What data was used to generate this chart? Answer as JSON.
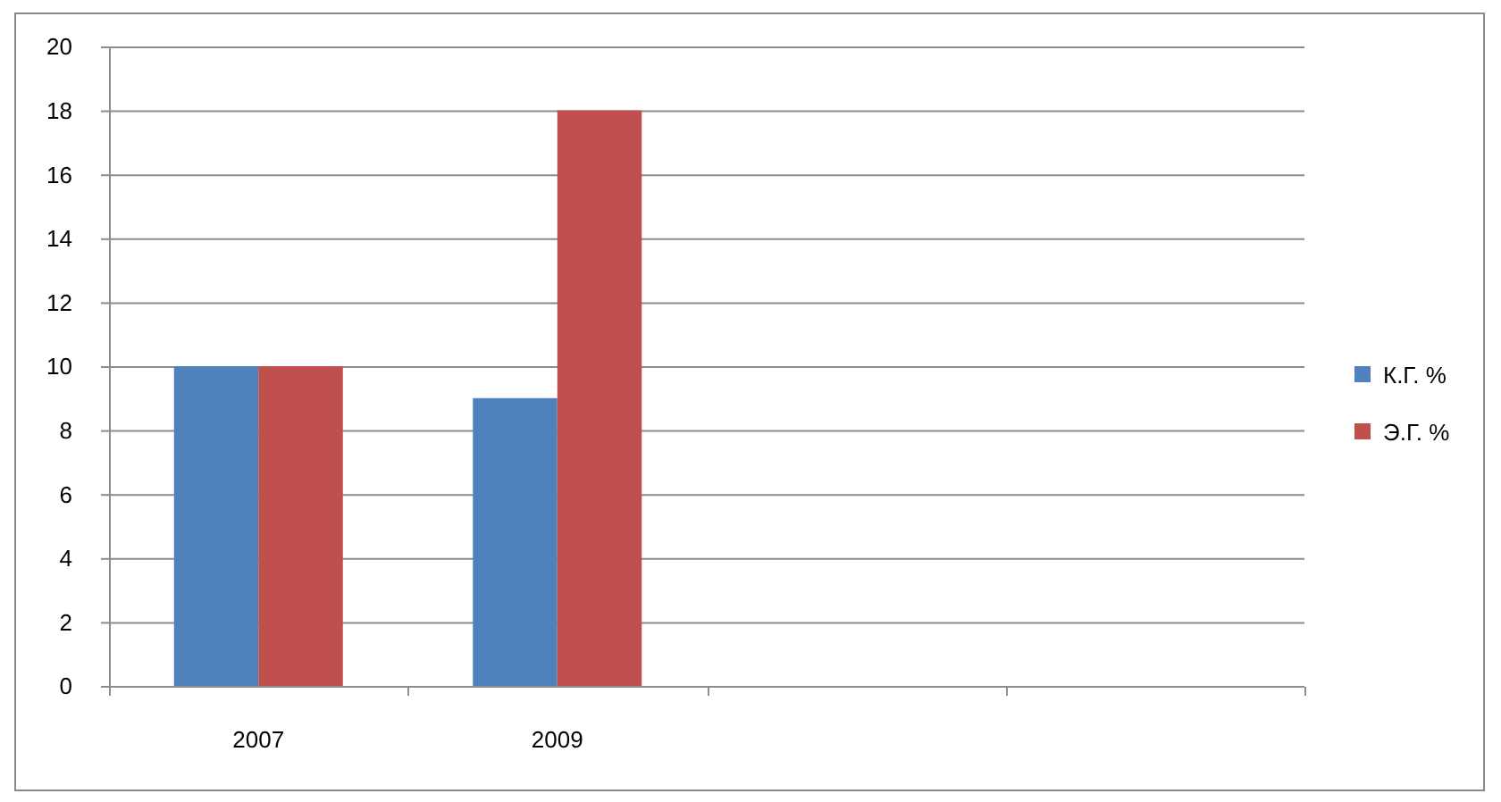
{
  "chart_data": {
    "type": "bar",
    "categories": [
      "2007",
      "2009",
      null,
      null
    ],
    "series": [
      {
        "name": "К.Г. %",
        "color": "#4f81bd",
        "values": [
          10,
          9,
          null,
          null
        ]
      },
      {
        "name": "Э.Г. %",
        "color": "#c0504d",
        "values": [
          10,
          18,
          null,
          null
        ]
      }
    ],
    "ylim": [
      0,
      20
    ],
    "yticks": [
      0,
      2,
      4,
      6,
      8,
      10,
      12,
      14,
      16,
      18,
      20
    ],
    "grid": "y",
    "legend": "right"
  }
}
